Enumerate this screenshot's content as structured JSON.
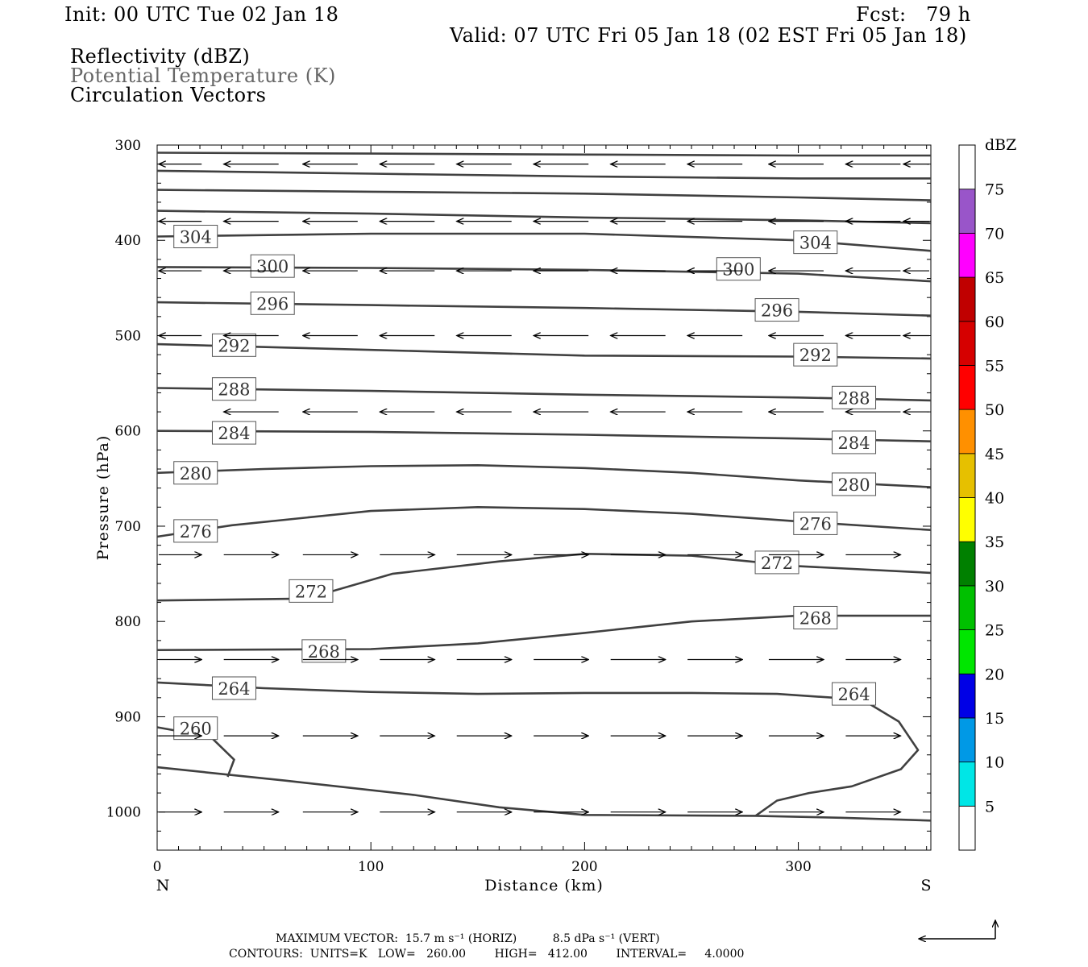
{
  "header": {
    "init": "Init: 00 UTC Tue 02 Jan 18",
    "fcst": "Fcst:   79 h",
    "valid": "Valid: 07 UTC Fri 05 Jan 18 (02 EST Fri 05 Jan 18)",
    "field1": "Reflectivity (dBZ)",
    "field2": "Potential Temperature (K)",
    "field3": "Circulation Vectors"
  },
  "footer": {
    "max_vector": "MAXIMUM VECTOR:  15.7 m s⁻¹ (HORIZ)          8.5 dPa s⁻¹ (VERT)",
    "contours": "CONTOURS:  UNITS=K   LOW=   260.00        HIGH=   412.00        INTERVAL=     4.0000"
  },
  "chart_data": {
    "type": "cross-section",
    "xlabel": "Distance (km)",
    "ylabel": "Pressure (hPa)",
    "xlim": [
      0,
      362
    ],
    "ylim": [
      300,
      1040
    ],
    "x_ticks": [
      0,
      100,
      200,
      300
    ],
    "y_ticks": [
      300,
      400,
      500,
      600,
      700,
      800,
      900,
      1000
    ],
    "y_scale": "linear (inverted)",
    "end_labels": {
      "left": "N",
      "right": "S"
    },
    "colorbar": {
      "unit": "dBZ",
      "levels": [
        5,
        10,
        15,
        20,
        25,
        30,
        35,
        40,
        45,
        50,
        55,
        60,
        65,
        70,
        75
      ],
      "colors": [
        "#ffffff",
        "#00e6e6",
        "#0099e6",
        "#0000e6",
        "#00e600",
        "#00c000",
        "#008000",
        "#ffff00",
        "#e6c000",
        "#ff9000",
        "#ff0000",
        "#d60000",
        "#c00000",
        "#ff00ff",
        "#9955c9",
        "#ffffff"
      ]
    },
    "contour_color": "#404040",
    "contours": [
      {
        "points": [
          [
            0,
            308
          ],
          [
            100,
            309
          ],
          [
            200,
            310
          ],
          [
            300,
            311
          ],
          [
            362,
            311
          ]
        ]
      },
      {
        "points": [
          [
            0,
            327
          ],
          [
            100,
            330
          ],
          [
            200,
            333
          ],
          [
            300,
            335
          ],
          [
            362,
            335
          ]
        ]
      },
      {
        "points": [
          [
            0,
            347
          ],
          [
            100,
            349
          ],
          [
            200,
            351
          ],
          [
            300,
            355
          ],
          [
            362,
            358
          ]
        ]
      },
      {
        "points": [
          [
            0,
            369
          ],
          [
            100,
            372
          ],
          [
            200,
            376
          ],
          [
            300,
            379
          ],
          [
            362,
            382
          ]
        ]
      },
      {
        "value": 304,
        "labels": [
          [
            18,
            396
          ],
          [
            308,
            402
          ]
        ],
        "points": [
          [
            0,
            396
          ],
          [
            100,
            393
          ],
          [
            200,
            393
          ],
          [
            300,
            400
          ],
          [
            362,
            411
          ]
        ]
      },
      {
        "value": 300,
        "labels": [
          [
            54,
            427
          ],
          [
            272,
            430
          ]
        ],
        "points": [
          [
            0,
            428
          ],
          [
            100,
            429
          ],
          [
            200,
            431
          ],
          [
            300,
            435
          ],
          [
            362,
            443
          ]
        ]
      },
      {
        "value": 296,
        "labels": [
          [
            54,
            466
          ],
          [
            290,
            473
          ]
        ],
        "points": [
          [
            0,
            465
          ],
          [
            100,
            468
          ],
          [
            200,
            471
          ],
          [
            300,
            475
          ],
          [
            362,
            479
          ]
        ]
      },
      {
        "value": 292,
        "labels": [
          [
            36,
            510
          ],
          [
            308,
            520
          ]
        ],
        "points": [
          [
            0,
            509
          ],
          [
            100,
            515
          ],
          [
            200,
            521
          ],
          [
            300,
            522
          ],
          [
            362,
            524
          ]
        ]
      },
      {
        "value": 288,
        "labels": [
          [
            36,
            556
          ],
          [
            326,
            565
          ]
        ],
        "points": [
          [
            0,
            555
          ],
          [
            100,
            558
          ],
          [
            200,
            562
          ],
          [
            300,
            565
          ],
          [
            362,
            568
          ]
        ]
      },
      {
        "value": 284,
        "labels": [
          [
            36,
            602
          ],
          [
            326,
            612
          ]
        ],
        "points": [
          [
            0,
            600
          ],
          [
            100,
            601
          ],
          [
            200,
            604
          ],
          [
            300,
            608
          ],
          [
            362,
            611
          ]
        ]
      },
      {
        "value": 280,
        "labels": [
          [
            18,
            644
          ],
          [
            326,
            656
          ]
        ],
        "points": [
          [
            0,
            644
          ],
          [
            50,
            640
          ],
          [
            100,
            637
          ],
          [
            150,
            636
          ],
          [
            200,
            639
          ],
          [
            250,
            644
          ],
          [
            300,
            652
          ],
          [
            362,
            659
          ]
        ]
      },
      {
        "value": 276,
        "labels": [
          [
            18,
            705
          ],
          [
            308,
            697
          ]
        ],
        "points": [
          [
            0,
            711
          ],
          [
            35,
            699
          ],
          [
            100,
            684
          ],
          [
            150,
            680
          ],
          [
            200,
            682
          ],
          [
            250,
            687
          ],
          [
            300,
            695
          ],
          [
            362,
            704
          ]
        ]
      },
      {
        "value": 272,
        "labels": [
          [
            72,
            768
          ],
          [
            290,
            738
          ]
        ],
        "points": [
          [
            0,
            778
          ],
          [
            70,
            776
          ],
          [
            110,
            750
          ],
          [
            160,
            737
          ],
          [
            200,
            729
          ],
          [
            250,
            731
          ],
          [
            300,
            742
          ],
          [
            362,
            749
          ]
        ]
      },
      {
        "value": 268,
        "labels": [
          [
            78,
            831
          ],
          [
            308,
            796
          ]
        ],
        "points": [
          [
            0,
            830
          ],
          [
            100,
            829
          ],
          [
            150,
            823
          ],
          [
            200,
            812
          ],
          [
            250,
            800
          ],
          [
            300,
            794
          ],
          [
            362,
            794
          ]
        ]
      },
      {
        "value": 264,
        "labels": [
          [
            36,
            870
          ],
          [
            326,
            876
          ]
        ],
        "points": [
          [
            0,
            864
          ],
          [
            50,
            870
          ],
          [
            100,
            874
          ],
          [
            150,
            876
          ],
          [
            200,
            875
          ],
          [
            250,
            875
          ],
          [
            290,
            876
          ],
          [
            330,
            882
          ],
          [
            347,
            905
          ],
          [
            356,
            935
          ],
          [
            348,
            955
          ],
          [
            325,
            973
          ],
          [
            305,
            980
          ],
          [
            290,
            988
          ],
          [
            280,
            1004
          ]
        ]
      },
      {
        "value": 260,
        "labels": [
          [
            18,
            912
          ]
        ],
        "points": [
          [
            0,
            911
          ],
          [
            25,
            921
          ],
          [
            36,
            945
          ],
          [
            33,
            963
          ]
        ]
      },
      {
        "points": [
          [
            0,
            953
          ],
          [
            60,
            967
          ],
          [
            120,
            982
          ],
          [
            160,
            995
          ],
          [
            200,
            1003
          ],
          [
            280,
            1004
          ],
          [
            320,
            1006
          ],
          [
            362,
            1009
          ]
        ]
      }
    ],
    "vectors": [
      {
        "y": 320,
        "x": [
          8,
          44,
          81,
          117,
          153,
          189,
          225,
          261,
          299,
          335,
          362
        ],
        "u": [
          -1,
          -1,
          -1,
          -1,
          -1,
          -1,
          -1,
          -1,
          -1,
          -1,
          -1
        ]
      },
      {
        "y": 380,
        "x": [
          8,
          44,
          81,
          117,
          153,
          189,
          225,
          261,
          299,
          335,
          362
        ],
        "u": [
          -1,
          -1,
          -1,
          -1,
          -1,
          -1,
          -1,
          -1,
          -1,
          -1,
          -1
        ]
      },
      {
        "y": 432,
        "x": [
          8,
          44,
          81,
          117,
          153,
          189,
          225,
          261,
          299,
          335,
          362
        ],
        "u": [
          -1,
          -1,
          -1,
          -1,
          -1,
          -1,
          -1,
          -1,
          -1,
          -1,
          -1
        ]
      },
      {
        "y": 500,
        "x": [
          8,
          44,
          81,
          117,
          153,
          189,
          225,
          261,
          299,
          335,
          362
        ],
        "u": [
          -1,
          -1,
          -1,
          -1,
          -1,
          -1,
          -1,
          -1,
          -1,
          -1,
          -1
        ]
      },
      {
        "y": 580,
        "x": [
          44,
          81,
          117,
          153,
          189,
          225,
          261,
          299,
          335,
          362
        ],
        "u": [
          -1,
          -1,
          -1,
          -1,
          -1,
          -1,
          -1,
          -1,
          -1,
          -1
        ]
      },
      {
        "y": 730,
        "x": [
          8,
          44,
          81,
          117,
          153,
          189,
          225,
          261,
          299,
          335
        ],
        "u": [
          1,
          1,
          1,
          1,
          1,
          1,
          1,
          1,
          1,
          1
        ]
      },
      {
        "y": 840,
        "x": [
          8,
          44,
          81,
          117,
          153,
          189,
          225,
          261,
          299,
          335
        ],
        "u": [
          1,
          1,
          1,
          1,
          1,
          1,
          1,
          1,
          1,
          1
        ]
      },
      {
        "y": 920,
        "x": [
          8,
          44,
          81,
          117,
          153,
          189,
          225,
          261,
          299,
          335
        ],
        "u": [
          1,
          1,
          1,
          1,
          1,
          1,
          1,
          1,
          1,
          1
        ]
      },
      {
        "y": 1000,
        "x": [
          8,
          44,
          81,
          117,
          153,
          189,
          225,
          261,
          299,
          335
        ],
        "u": [
          1,
          1,
          1,
          1,
          1,
          1,
          1,
          1,
          1,
          1
        ]
      }
    ]
  }
}
